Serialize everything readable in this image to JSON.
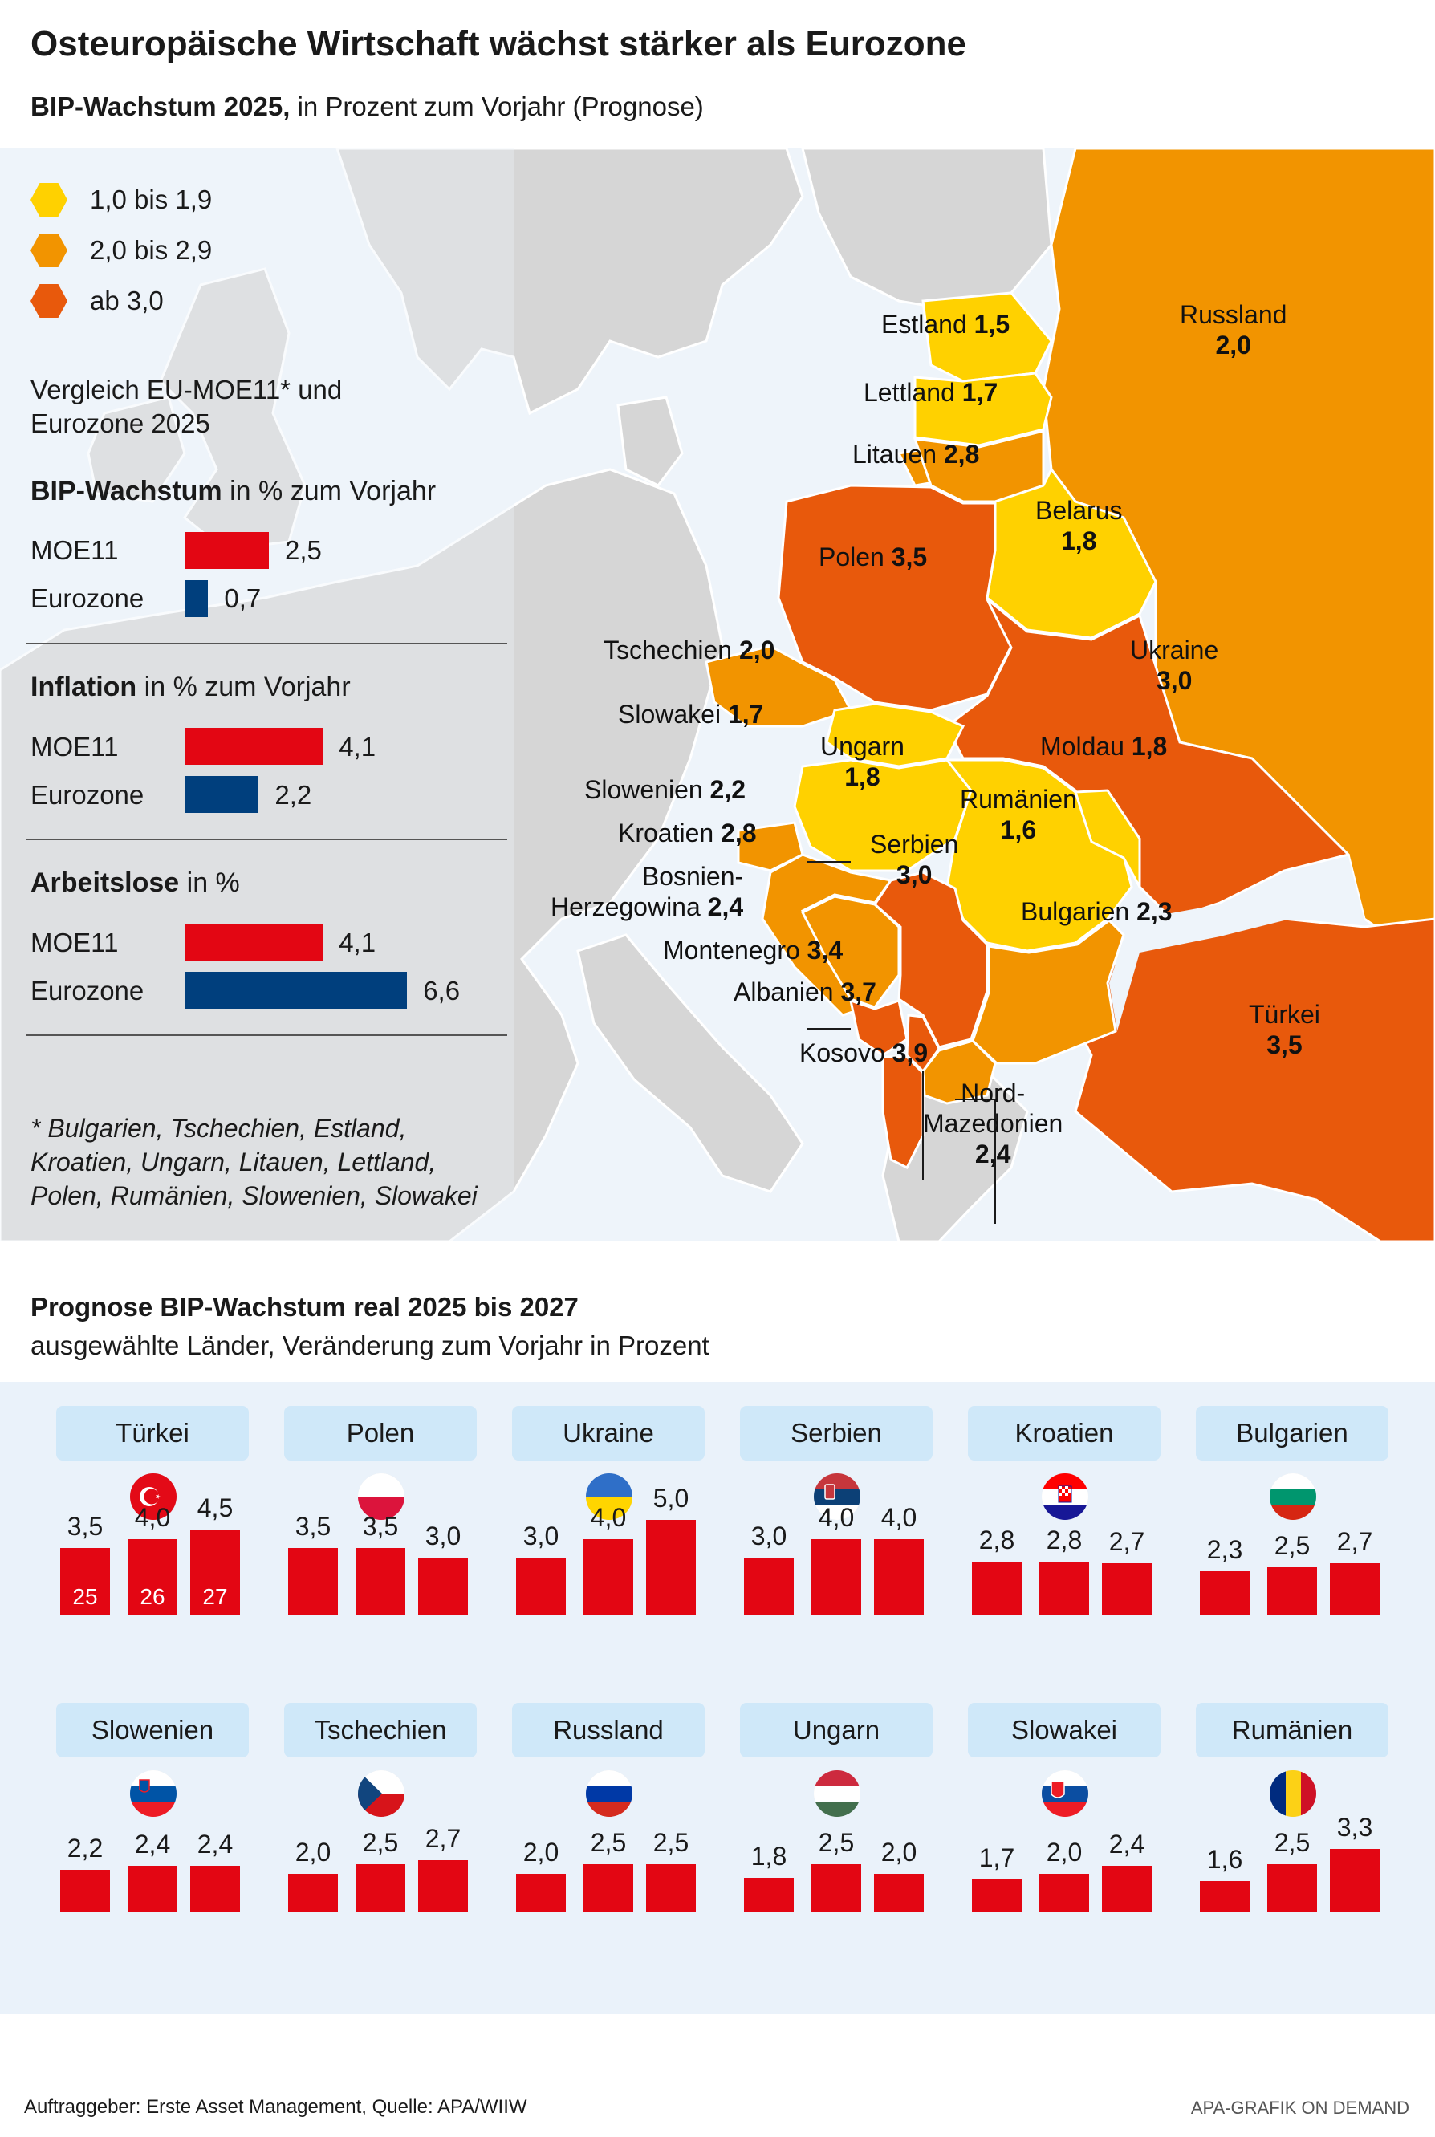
{
  "title": "Osteuropäische Wirtschaft wächst stärker als Eurozone",
  "subtitle_bold": "BIP-Wachstum 2025,",
  "subtitle_rest": "in Prozent zum Vorjahr (Prognose)",
  "colors": {
    "range_1": "#ffd100",
    "range_2": "#f29400",
    "range_3": "#e8590c",
    "bar_red": "#e30613",
    "bar_blue": "#003f7d",
    "land_grey": "#d6d6d6",
    "sea": "#eef4fa",
    "pill": "#cfe8f9"
  },
  "legend": [
    {
      "label": "1,0 bis 1,9",
      "color": "#ffd100"
    },
    {
      "label": "2,0 bis 2,9",
      "color": "#f29400"
    },
    {
      "label": "ab 3,0",
      "color": "#e8590c"
    }
  ],
  "comparison": {
    "intro_line1": "Vergleich EU-MOE11* und",
    "intro_line2": "Eurozone 2025",
    "gdp": {
      "head_bold": "BIP-Wachstum",
      "head_rest": "in % zum Vorjahr",
      "rows": [
        {
          "label": "MOE11",
          "value": 2.5,
          "value_label": "2,5"
        },
        {
          "label": "Eurozone",
          "value": 0.7,
          "value_label": "0,7"
        }
      ]
    },
    "inflation": {
      "head_bold": "Inflation",
      "head_rest": "in % zum Vorjahr",
      "rows": [
        {
          "label": "MOE11",
          "value": 4.1,
          "value_label": "4,1"
        },
        {
          "label": "Eurozone",
          "value": 2.2,
          "value_label": "2,2"
        }
      ]
    },
    "unemployment": {
      "head_bold": "Arbeitslose",
      "head_rest": "in %",
      "rows": [
        {
          "label": "MOE11",
          "value": 4.1,
          "value_label": "4,1"
        },
        {
          "label": "Eurozone",
          "value": 6.6,
          "value_label": "6,6"
        }
      ]
    }
  },
  "footnote": {
    "line1": "* Bulgarien, Tschechien, Estland,",
    "line2": "Kroatien, Ungarn, Litauen, Lettland,",
    "line3": "Polen, Rumänien, Slowenien, Slowakei"
  },
  "map_countries": [
    {
      "name": "Estland",
      "value": "1,5",
      "range": 1
    },
    {
      "name": "Lettland",
      "value": "1,7",
      "range": 1
    },
    {
      "name": "Litauen",
      "value": "2,8",
      "range": 2
    },
    {
      "name": "Russland",
      "value": "2,0",
      "range": 2
    },
    {
      "name": "Belarus",
      "value": "1,8",
      "range": 1
    },
    {
      "name": "Polen",
      "value": "3,5",
      "range": 3
    },
    {
      "name": "Tschechien",
      "value": "2,0",
      "range": 2
    },
    {
      "name": "Ukraine",
      "value": "3,0",
      "range": 3
    },
    {
      "name": "Slowakei",
      "value": "1,7",
      "range": 1
    },
    {
      "name": "Ungarn",
      "value": "1,8",
      "range": 1
    },
    {
      "name": "Moldau",
      "value": "1,8",
      "range": 1
    },
    {
      "name": "Slowenien",
      "value": "2,2",
      "range": 2
    },
    {
      "name": "Rumänien",
      "value": "1,6",
      "range": 1
    },
    {
      "name": "Kroatien",
      "value": "2,8",
      "range": 2
    },
    {
      "name": "Serbien",
      "value": "3,0",
      "range": 3
    },
    {
      "name": "Bosnien-",
      "name2": "Herzegowina",
      "value": "2,4",
      "range": 2
    },
    {
      "name": "Bulgarien",
      "value": "2,3",
      "range": 2
    },
    {
      "name": "Montenegro",
      "value": "3,4",
      "range": 3
    },
    {
      "name": "Albanien",
      "value": "3,7",
      "range": 3
    },
    {
      "name": "Türkei",
      "value": "3,5",
      "range": 3
    },
    {
      "name": "Kosovo",
      "value": "3,9",
      "range": 3
    },
    {
      "name": "Nord-",
      "name2": "Mazedonien",
      "value": "2,4",
      "range": 2
    }
  ],
  "section2": {
    "title": "Prognose BIP-Wachstum real 2025 bis 2027",
    "subtitle": "ausgewählte Länder, Veränderung zum Vorjahr in Prozent",
    "year_labels": [
      "25",
      "26",
      "27"
    ]
  },
  "chart_data": {
    "type": "bar",
    "categories": [
      "2025",
      "2026",
      "2027"
    ],
    "series": [
      {
        "name": "Türkei",
        "values": [
          3.5,
          4.0,
          4.5
        ],
        "labels": [
          "3,5",
          "4,0",
          "4,5"
        ],
        "flag": "turkey-flag-icon"
      },
      {
        "name": "Polen",
        "values": [
          3.5,
          3.5,
          3.0
        ],
        "labels": [
          "3,5",
          "3,5",
          "3,0"
        ],
        "flag": "poland-flag-icon"
      },
      {
        "name": "Ukraine",
        "values": [
          3.0,
          4.0,
          5.0
        ],
        "labels": [
          "3,0",
          "4,0",
          "5,0"
        ],
        "flag": "ukraine-flag-icon"
      },
      {
        "name": "Serbien",
        "values": [
          3.0,
          4.0,
          4.0
        ],
        "labels": [
          "3,0",
          "4,0",
          "4,0"
        ],
        "flag": "serbia-flag-icon"
      },
      {
        "name": "Kroatien",
        "values": [
          2.8,
          2.8,
          2.7
        ],
        "labels": [
          "2,8",
          "2,8",
          "2,7"
        ],
        "flag": "croatia-flag-icon"
      },
      {
        "name": "Bulgarien",
        "values": [
          2.3,
          2.5,
          2.7
        ],
        "labels": [
          "2,3",
          "2,5",
          "2,7"
        ],
        "flag": "bulgaria-flag-icon"
      },
      {
        "name": "Slowenien",
        "values": [
          2.2,
          2.4,
          2.4
        ],
        "labels": [
          "2,2",
          "2,4",
          "2,4"
        ],
        "flag": "slovenia-flag-icon"
      },
      {
        "name": "Tschechien",
        "values": [
          2.0,
          2.5,
          2.7
        ],
        "labels": [
          "2,0",
          "2,5",
          "2,7"
        ],
        "flag": "czechia-flag-icon"
      },
      {
        "name": "Russland",
        "values": [
          2.0,
          2.5,
          2.5
        ],
        "labels": [
          "2,0",
          "2,5",
          "2,5"
        ],
        "flag": "russia-flag-icon"
      },
      {
        "name": "Ungarn",
        "values": [
          1.8,
          2.5,
          2.0
        ],
        "labels": [
          "1,8",
          "2,5",
          "2,0"
        ],
        "flag": "hungary-flag-icon"
      },
      {
        "name": "Slowakei",
        "values": [
          1.7,
          2.0,
          2.4
        ],
        "labels": [
          "1,7",
          "2,0",
          "2,4"
        ],
        "flag": "slovakia-flag-icon"
      },
      {
        "name": "Rumänien",
        "values": [
          1.6,
          2.5,
          3.3
        ],
        "labels": [
          "1,6",
          "2,5",
          "3,3"
        ],
        "flag": "romania-flag-icon"
      }
    ],
    "ylim": [
      0,
      5.0
    ]
  },
  "footer": {
    "left": "Auftraggeber: Erste Asset Management, Quelle: APA/WIIW",
    "right": "APA-GRAFIK ON DEMAND"
  }
}
